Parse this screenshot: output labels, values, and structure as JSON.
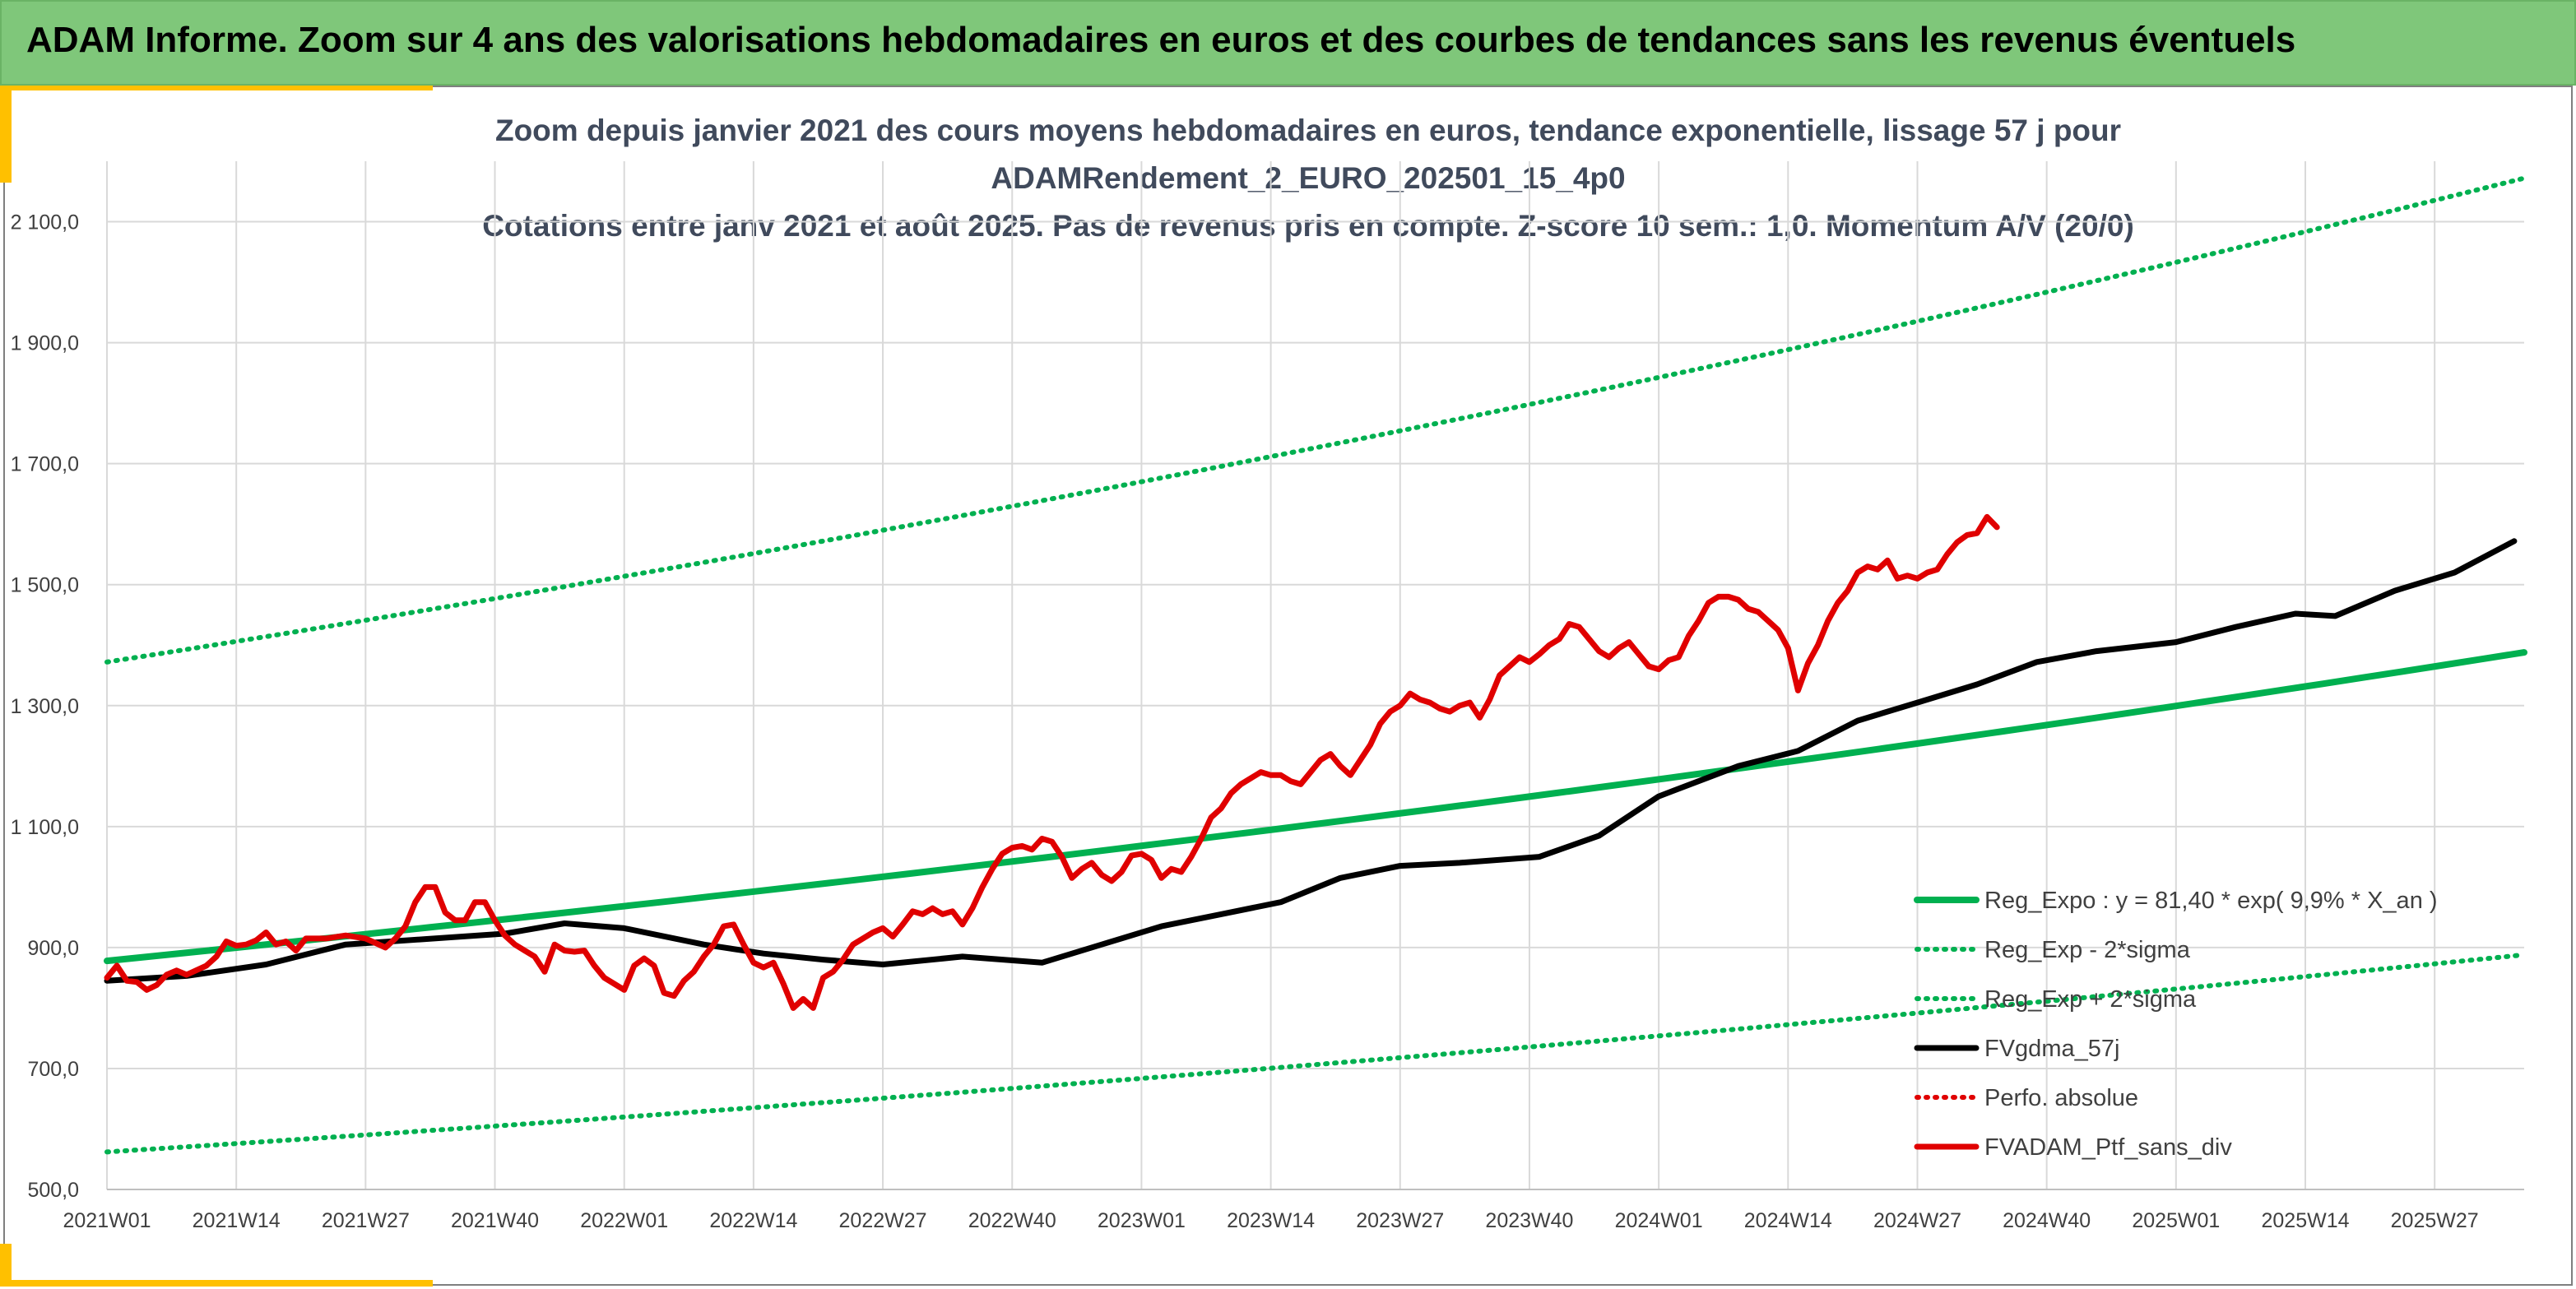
{
  "header": {
    "title": "ADAM Informe. Zoom sur 4 ans des valorisations hebdomadaires en euros et des courbes de tendances sans les revenus éventuels"
  },
  "colors": {
    "banner": "#7fc77a",
    "accent": "#ffc000",
    "reg_expo": "#00b050",
    "sigma": "#00b050",
    "gdma": "#000000",
    "perfo": "#e00000",
    "ptf": "#e00000"
  },
  "chart_data": {
    "type": "line",
    "title": [
      "Zoom depuis janvier 2021 des cours moyens hebdomadaires en euros, tendance exponentielle, lissage 57 j pour",
      "ADAMRendement_2_EURO_202501_15_4p0",
      "Cotations entre janv 2021 et août 2025. Pas de revenus pris en compte. Z-score 10 sem.: 1,0. Momentum A/V (20/0)"
    ],
    "xlabel": "",
    "ylabel": "",
    "ylim": [
      500,
      2200
    ],
    "y_ticks": [
      "500,0",
      "700,0",
      "900,0",
      "1 100,0",
      "1 300,0",
      "1 500,0",
      "1 700,0",
      "1 900,0",
      "2 100,0"
    ],
    "y_tick_values": [
      500,
      700,
      900,
      1100,
      1300,
      1500,
      1700,
      1900,
      2100
    ],
    "x_ticks": [
      "2021W01",
      "2021W14",
      "2021W27",
      "2021W40",
      "2022W01",
      "2022W14",
      "2022W27",
      "2022W40",
      "2023W01",
      "2023W14",
      "2023W27",
      "2023W40",
      "2024W01",
      "2024W14",
      "2024W27",
      "2024W40",
      "2025W01",
      "2025W14",
      "2025W27"
    ],
    "x_tick_weeks": [
      0,
      13,
      26,
      39,
      52,
      65,
      78,
      91,
      104,
      117,
      130,
      143,
      156,
      169,
      182,
      195,
      208,
      221,
      234
    ],
    "x_range_weeks": [
      0,
      243
    ],
    "grid": "vertical and horizontal",
    "legend_position": "bottom-right",
    "series": [
      {
        "name": "Reg_Expo : y = 81,40 * exp( 9,9% *  X_an )",
        "style": "solid-green",
        "points": [
          [
            0,
            878
          ],
          [
            243,
            1388
          ]
        ]
      },
      {
        "name": "Reg_Exp - 2*sigma",
        "style": "dotted-green",
        "points": [
          [
            0,
            562
          ],
          [
            243,
            888
          ]
        ]
      },
      {
        "name": "Reg_Exp + 2*sigma",
        "style": "dotted-green",
        "points": [
          [
            0,
            1372
          ],
          [
            243,
            2172
          ]
        ]
      },
      {
        "name": "FVgdma_57j",
        "style": "solid-black",
        "points": [
          [
            0,
            845
          ],
          [
            8,
            853
          ],
          [
            16,
            872
          ],
          [
            24,
            905
          ],
          [
            32,
            914
          ],
          [
            40,
            923
          ],
          [
            46,
            940
          ],
          [
            52,
            932
          ],
          [
            60,
            905
          ],
          [
            66,
            890
          ],
          [
            72,
            880
          ],
          [
            78,
            872
          ],
          [
            86,
            885
          ],
          [
            94,
            875
          ],
          [
            100,
            905
          ],
          [
            106,
            935
          ],
          [
            112,
            955
          ],
          [
            118,
            975
          ],
          [
            124,
            1015
          ],
          [
            130,
            1035
          ],
          [
            136,
            1040
          ],
          [
            144,
            1050
          ],
          [
            150,
            1085
          ],
          [
            156,
            1150
          ],
          [
            164,
            1200
          ],
          [
            170,
            1225
          ],
          [
            176,
            1275
          ],
          [
            182,
            1305
          ],
          [
            188,
            1335
          ],
          [
            194,
            1372
          ],
          [
            200,
            1390
          ],
          [
            208,
            1405
          ],
          [
            214,
            1430
          ],
          [
            220,
            1452
          ],
          [
            224,
            1448
          ],
          [
            230,
            1490
          ],
          [
            236,
            1520
          ],
          [
            242,
            1572
          ]
        ]
      },
      {
        "name": "Perfo. absolue",
        "style": "dotted-red",
        "points": []
      },
      {
        "name": "FVADAM_Ptf_sans_div",
        "style": "solid-red",
        "points": [
          [
            0,
            850
          ],
          [
            1,
            870
          ],
          [
            2,
            845
          ],
          [
            3,
            843
          ],
          [
            4,
            830
          ],
          [
            5,
            838
          ],
          [
            6,
            855
          ],
          [
            7,
            862
          ],
          [
            8,
            855
          ],
          [
            10,
            870
          ],
          [
            11,
            885
          ],
          [
            12,
            910
          ],
          [
            13,
            903
          ],
          [
            14,
            905
          ],
          [
            15,
            912
          ],
          [
            16,
            925
          ],
          [
            17,
            905
          ],
          [
            18,
            910
          ],
          [
            19,
            895
          ],
          [
            20,
            915
          ],
          [
            22,
            915
          ],
          [
            24,
            920
          ],
          [
            26,
            915
          ],
          [
            28,
            900
          ],
          [
            29,
            915
          ],
          [
            30,
            935
          ],
          [
            31,
            975
          ],
          [
            32,
            1000
          ],
          [
            33,
            1000
          ],
          [
            34,
            958
          ],
          [
            35,
            945
          ],
          [
            36,
            945
          ],
          [
            37,
            975
          ],
          [
            38,
            975
          ],
          [
            39,
            945
          ],
          [
            40,
            920
          ],
          [
            41,
            905
          ],
          [
            42,
            895
          ],
          [
            43,
            885
          ],
          [
            44,
            860
          ],
          [
            45,
            905
          ],
          [
            46,
            895
          ],
          [
            47,
            893
          ],
          [
            48,
            895
          ],
          [
            49,
            870
          ],
          [
            50,
            850
          ],
          [
            51,
            840
          ],
          [
            52,
            830
          ],
          [
            53,
            870
          ],
          [
            54,
            882
          ],
          [
            55,
            870
          ],
          [
            56,
            825
          ],
          [
            57,
            820
          ],
          [
            58,
            845
          ],
          [
            59,
            860
          ],
          [
            60,
            885
          ],
          [
            61,
            905
          ],
          [
            62,
            935
          ],
          [
            63,
            938
          ],
          [
            64,
            905
          ],
          [
            65,
            875
          ],
          [
            66,
            867
          ],
          [
            67,
            875
          ],
          [
            68,
            840
          ],
          [
            69,
            800
          ],
          [
            70,
            815
          ],
          [
            71,
            800
          ],
          [
            72,
            850
          ],
          [
            73,
            860
          ],
          [
            74,
            880
          ],
          [
            75,
            905
          ],
          [
            76,
            915
          ],
          [
            77,
            925
          ],
          [
            78,
            932
          ],
          [
            79,
            918
          ],
          [
            80,
            938
          ],
          [
            81,
            960
          ],
          [
            82,
            955
          ],
          [
            83,
            965
          ],
          [
            84,
            955
          ],
          [
            85,
            960
          ],
          [
            86,
            938
          ],
          [
            87,
            965
          ],
          [
            88,
            1000
          ],
          [
            89,
            1030
          ],
          [
            90,
            1055
          ],
          [
            91,
            1065
          ],
          [
            92,
            1068
          ],
          [
            93,
            1062
          ],
          [
            94,
            1080
          ],
          [
            95,
            1075
          ],
          [
            96,
            1050
          ],
          [
            97,
            1015
          ],
          [
            98,
            1030
          ],
          [
            99,
            1040
          ],
          [
            100,
            1020
          ],
          [
            101,
            1010
          ],
          [
            102,
            1025
          ],
          [
            103,
            1052
          ],
          [
            104,
            1055
          ],
          [
            105,
            1045
          ],
          [
            106,
            1015
          ],
          [
            107,
            1030
          ],
          [
            108,
            1025
          ],
          [
            109,
            1050
          ],
          [
            110,
            1080
          ],
          [
            111,
            1115
          ],
          [
            112,
            1130
          ],
          [
            113,
            1155
          ],
          [
            114,
            1170
          ],
          [
            115,
            1180
          ],
          [
            116,
            1190
          ],
          [
            117,
            1185
          ],
          [
            118,
            1185
          ],
          [
            119,
            1175
          ],
          [
            120,
            1170
          ],
          [
            121,
            1190
          ],
          [
            122,
            1210
          ],
          [
            123,
            1220
          ],
          [
            124,
            1200
          ],
          [
            125,
            1185
          ],
          [
            126,
            1210
          ],
          [
            127,
            1235
          ],
          [
            128,
            1270
          ],
          [
            129,
            1290
          ],
          [
            130,
            1300
          ],
          [
            131,
            1320
          ],
          [
            132,
            1310
          ],
          [
            133,
            1305
          ],
          [
            134,
            1295
          ],
          [
            135,
            1290
          ],
          [
            136,
            1300
          ],
          [
            137,
            1305
          ],
          [
            138,
            1280
          ],
          [
            139,
            1310
          ],
          [
            140,
            1350
          ],
          [
            141,
            1365
          ],
          [
            142,
            1380
          ],
          [
            143,
            1372
          ],
          [
            144,
            1385
          ],
          [
            145,
            1400
          ],
          [
            146,
            1410
          ],
          [
            147,
            1435
          ],
          [
            148,
            1430
          ],
          [
            149,
            1410
          ],
          [
            150,
            1390
          ],
          [
            151,
            1380
          ],
          [
            152,
            1395
          ],
          [
            153,
            1405
          ],
          [
            154,
            1385
          ],
          [
            155,
            1365
          ],
          [
            156,
            1360
          ],
          [
            157,
            1375
          ],
          [
            158,
            1380
          ],
          [
            159,
            1415
          ],
          [
            160,
            1440
          ],
          [
            161,
            1470
          ],
          [
            162,
            1480
          ],
          [
            163,
            1480
          ],
          [
            164,
            1475
          ],
          [
            165,
            1460
          ],
          [
            166,
            1455
          ],
          [
            167,
            1440
          ],
          [
            168,
            1425
          ],
          [
            169,
            1395
          ],
          [
            170,
            1325
          ],
          [
            171,
            1370
          ],
          [
            172,
            1400
          ],
          [
            173,
            1440
          ],
          [
            174,
            1470
          ],
          [
            175,
            1490
          ],
          [
            176,
            1520
          ],
          [
            177,
            1530
          ],
          [
            178,
            1525
          ],
          [
            179,
            1540
          ],
          [
            180,
            1510
          ],
          [
            181,
            1515
          ],
          [
            182,
            1510
          ],
          [
            183,
            1520
          ],
          [
            184,
            1525
          ],
          [
            185,
            1550
          ],
          [
            186,
            1570
          ],
          [
            187,
            1582
          ],
          [
            188,
            1585
          ],
          [
            189,
            1612
          ],
          [
            190,
            1595
          ]
        ]
      }
    ]
  }
}
